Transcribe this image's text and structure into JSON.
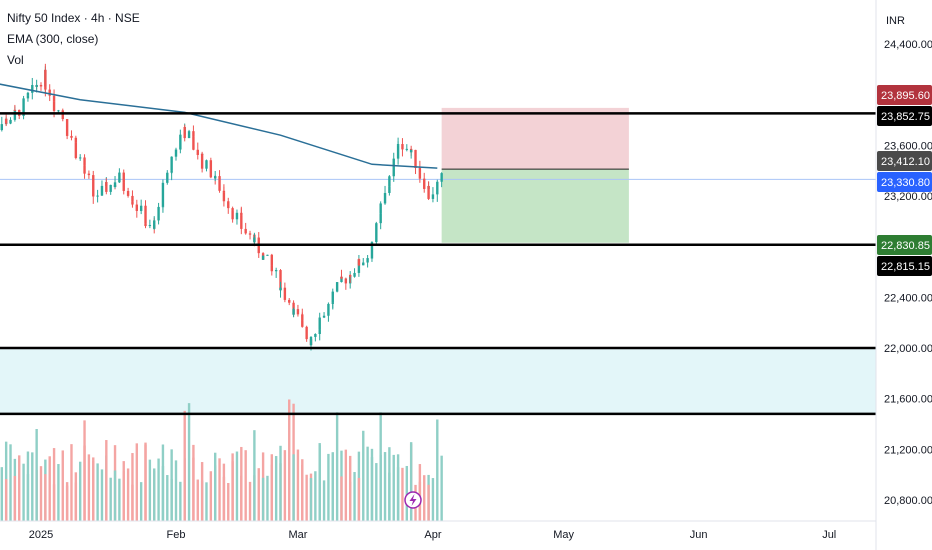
{
  "header": {
    "symbol_line": "Nifty 50 Index · 4h · NSE",
    "ema_line": "EMA (300, close)",
    "vol_line": "Vol"
  },
  "price_axis": {
    "currency": "INR",
    "ticks": [
      "24,400.00",
      "23,600.00",
      "23,200.00",
      "22,400.00",
      "22,000.00",
      "21,600.00",
      "21,200.00",
      "20,800.00"
    ]
  },
  "time_axis": {
    "labels": [
      "2025",
      "Feb",
      "Mar",
      "Apr",
      "May",
      "Jun",
      "Jul"
    ]
  },
  "price_tags": [
    {
      "label": "23,895.60",
      "value": 23895.6,
      "color": "#b2333d"
    },
    {
      "label": "23,852.75",
      "value": 23852.75,
      "color": "#000000"
    },
    {
      "label": "23,412.10",
      "value": 23412.1,
      "color": "#4a4a4a"
    },
    {
      "label": "23,330.80",
      "value": 23330.8,
      "color": "#2962ff"
    },
    {
      "label": "22,830.85",
      "value": 22830.85,
      "color": "#2e7d32"
    },
    {
      "label": "22,815.15",
      "value": 22815.15,
      "color": "#000000"
    }
  ],
  "colors": {
    "up": "#26a69a",
    "down": "#ef5350",
    "ema": "#2a6f97",
    "volume_up": "#8fcfc6",
    "volume_down": "#f4a5a3",
    "zone": "#e3f6f9",
    "stop_zone": "#f3d2d6",
    "target_zone": "#c5e5c6",
    "grid_line": "#000000"
  },
  "chart_data": {
    "type": "candlestick",
    "symbol": "Nifty 50 Index",
    "interval": "4h",
    "exchange": "NSE",
    "indicators": [
      "EMA (300, close)",
      "Vol"
    ],
    "price_range": [
      20640,
      24600
    ],
    "price_ticks": [
      24400,
      23600,
      23200,
      22400,
      22000,
      21600,
      21200,
      20800
    ],
    "time_labels": [
      "2025",
      "Feb",
      "Mar",
      "Apr",
      "May",
      "Jun",
      "Jul"
    ],
    "horizontal_lines": [
      23852.75,
      22815.15,
      22000,
      21480
    ],
    "support_zone": [
      21480,
      22000
    ],
    "position": {
      "entry": 23412.1,
      "stop": 23895.6,
      "target": 22830.85,
      "start": "2025-04-03",
      "end": "2025-05-16"
    },
    "last_price": 23330.8,
    "ema_path": [
      {
        "date": "2024-12-20",
        "value": 24100
      },
      {
        "date": "2025-01-10",
        "value": 23960
      },
      {
        "date": "2025-02-03",
        "value": 23860
      },
      {
        "date": "2025-02-25",
        "value": 23680
      },
      {
        "date": "2025-03-18",
        "value": 23450
      },
      {
        "date": "2025-04-02",
        "value": 23420
      }
    ],
    "series_path": [
      {
        "date": "2024-12-20",
        "close": 23700
      },
      {
        "date": "2024-12-27",
        "close": 23850
      },
      {
        "date": "2025-01-02",
        "close": 24150
      },
      {
        "date": "2025-01-08",
        "close": 23700
      },
      {
        "date": "2025-01-14",
        "close": 23200
      },
      {
        "date": "2025-01-20",
        "close": 23350
      },
      {
        "date": "2025-01-27",
        "close": 22900
      },
      {
        "date": "2025-02-03",
        "close": 23750
      },
      {
        "date": "2025-02-10",
        "close": 23350
      },
      {
        "date": "2025-02-17",
        "close": 22950
      },
      {
        "date": "2025-02-24",
        "close": 22600
      },
      {
        "date": "2025-03-04",
        "close": 22050
      },
      {
        "date": "2025-03-11",
        "close": 22500
      },
      {
        "date": "2025-03-18",
        "close": 22750
      },
      {
        "date": "2025-03-25",
        "close": 23650
      },
      {
        "date": "2025-03-28",
        "close": 23500
      },
      {
        "date": "2025-04-01",
        "close": 23200
      },
      {
        "date": "2025-04-03",
        "close": 23330.8
      }
    ]
  }
}
